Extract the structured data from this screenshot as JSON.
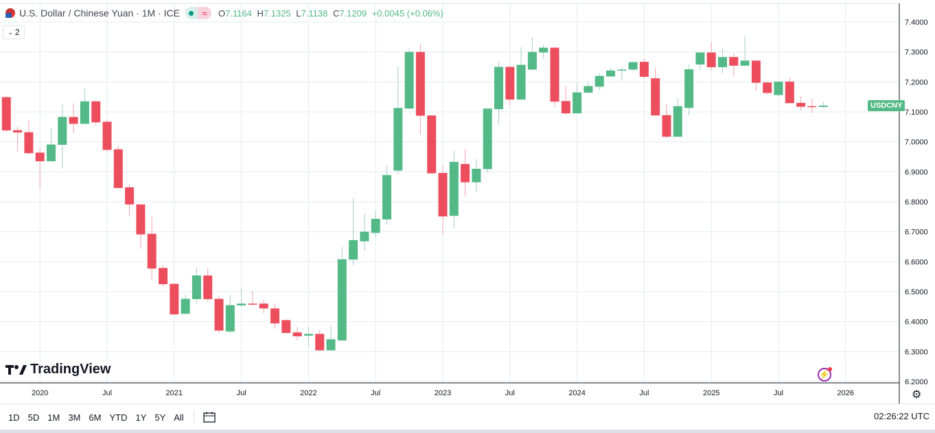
{
  "legend": {
    "title": "U.S. Dollar / Chinese Yuan · 1M · ICE",
    "open_label": "O",
    "open": "7.1164",
    "high_label": "H",
    "high": "7.1325",
    "low_label": "L",
    "low": "7.1138",
    "close_label": "C",
    "close": "7.1209",
    "change": "+0.0045 (+0.06%)",
    "collapse_count": "2",
    "wave_icon": "≈"
  },
  "symbol_tag": "USDCNY",
  "logo_text": "TradingView",
  "colors": {
    "up": "#53b987",
    "down": "#ec4e5e",
    "up_wick": "#a3cdc9",
    "down_wick": "#f4a0aa",
    "grid": "#e1ecf2"
  },
  "chart_data": {
    "type": "candlestick",
    "interval": "1M",
    "ylim": [
      6.2,
      7.4
    ],
    "y_ticks": [
      "7.4000",
      "7.3000",
      "7.2000",
      "7.1000",
      "7.0000",
      "6.9000",
      "6.8000",
      "6.7000",
      "6.6000",
      "6.5000",
      "6.4000",
      "6.3000",
      "6.2000"
    ],
    "x_ticks": [
      {
        "label": "2020",
        "date": "2020-01"
      },
      {
        "label": "Jul",
        "date": "2020-07"
      },
      {
        "label": "2021",
        "date": "2021-01"
      },
      {
        "label": "Jul",
        "date": "2021-07"
      },
      {
        "label": "2022",
        "date": "2022-01"
      },
      {
        "label": "Jul",
        "date": "2022-07"
      },
      {
        "label": "2023",
        "date": "2023-01"
      },
      {
        "label": "Jul",
        "date": "2023-07"
      },
      {
        "label": "2024",
        "date": "2024-01"
      },
      {
        "label": "Jul",
        "date": "2024-07"
      },
      {
        "label": "2025",
        "date": "2025-01"
      },
      {
        "label": "Jul",
        "date": "2025-07"
      },
      {
        "label": "2026",
        "date": "2026-01"
      }
    ],
    "grid": true,
    "candles": [
      [
        "2019-10",
        7.149,
        7.153,
        7.033,
        7.038
      ],
      [
        "2019-11",
        7.039,
        7.051,
        6.969,
        7.031
      ],
      [
        "2019-12",
        7.032,
        7.073,
        6.958,
        6.962
      ],
      [
        "2020-01",
        6.964,
        6.98,
        6.843,
        6.935
      ],
      [
        "2020-02",
        6.935,
        7.044,
        6.935,
        6.991
      ],
      [
        "2020-03",
        6.99,
        7.124,
        6.912,
        7.083
      ],
      [
        "2020-04",
        7.083,
        7.128,
        7.029,
        7.06
      ],
      [
        "2020-05",
        7.06,
        7.178,
        7.06,
        7.135
      ],
      [
        "2020-06",
        7.135,
        7.14,
        7.054,
        7.065
      ],
      [
        "2020-07",
        7.067,
        7.073,
        6.967,
        6.973
      ],
      [
        "2020-08",
        6.975,
        6.987,
        6.844,
        6.846
      ],
      [
        "2020-09",
        6.848,
        6.857,
        6.753,
        6.791
      ],
      [
        "2020-10",
        6.791,
        6.793,
        6.643,
        6.691
      ],
      [
        "2020-11",
        6.693,
        6.75,
        6.541,
        6.577
      ],
      [
        "2020-12",
        6.579,
        6.588,
        6.518,
        6.525
      ],
      [
        "2021-01",
        6.526,
        6.528,
        6.424,
        6.424
      ],
      [
        "2021-02",
        6.426,
        6.49,
        6.426,
        6.476
      ],
      [
        "2021-03",
        6.475,
        6.581,
        6.459,
        6.554
      ],
      [
        "2021-04",
        6.554,
        6.579,
        6.465,
        6.475
      ],
      [
        "2021-05",
        6.476,
        6.485,
        6.361,
        6.37
      ],
      [
        "2021-06",
        6.367,
        6.489,
        6.36,
        6.455
      ],
      [
        "2021-07",
        6.454,
        6.51,
        6.449,
        6.46
      ],
      [
        "2021-08",
        6.46,
        6.503,
        6.453,
        6.457
      ],
      [
        "2021-09",
        6.46,
        6.473,
        6.428,
        6.444
      ],
      [
        "2021-10",
        6.444,
        6.46,
        6.376,
        6.394
      ],
      [
        "2021-11",
        6.405,
        6.407,
        6.361,
        6.362
      ],
      [
        "2021-12",
        6.364,
        6.382,
        6.337,
        6.351
      ],
      [
        "2022-01",
        6.353,
        6.382,
        6.316,
        6.359
      ],
      [
        "2022-02",
        6.359,
        6.37,
        6.303,
        6.304
      ],
      [
        "2022-03",
        6.304,
        6.386,
        6.304,
        6.341
      ],
      [
        "2022-04",
        6.337,
        6.649,
        6.337,
        6.608
      ],
      [
        "2022-05",
        6.607,
        6.812,
        6.588,
        6.672
      ],
      [
        "2022-06",
        6.668,
        6.76,
        6.636,
        6.7
      ],
      [
        "2022-07",
        6.696,
        6.77,
        6.684,
        6.743
      ],
      [
        "2022-08",
        6.741,
        6.921,
        6.723,
        6.889
      ],
      [
        "2022-09",
        6.904,
        7.251,
        6.892,
        7.113
      ],
      [
        "2022-10",
        7.111,
        7.31,
        7.109,
        7.3
      ],
      [
        "2022-11",
        7.3,
        7.326,
        7.025,
        7.087
      ],
      [
        "2022-12",
        7.088,
        7.088,
        6.892,
        6.895
      ],
      [
        "2023-01",
        6.896,
        6.921,
        6.692,
        6.751
      ],
      [
        "2023-02",
        6.753,
        6.971,
        6.71,
        6.933
      ],
      [
        "2023-03",
        6.926,
        6.976,
        6.817,
        6.865
      ],
      [
        "2023-04",
        6.865,
        6.942,
        6.833,
        6.91
      ],
      [
        "2023-05",
        6.909,
        7.111,
        6.897,
        7.111
      ],
      [
        "2023-06",
        7.109,
        7.268,
        7.057,
        7.25
      ],
      [
        "2023-07",
        7.25,
        7.254,
        7.121,
        7.141
      ],
      [
        "2023-08",
        7.141,
        7.316,
        7.141,
        7.257
      ],
      [
        "2023-09",
        7.241,
        7.348,
        7.241,
        7.3
      ],
      [
        "2023-10",
        7.298,
        7.323,
        7.276,
        7.314
      ],
      [
        "2023-11",
        7.314,
        7.318,
        7.118,
        7.134
      ],
      [
        "2023-12",
        7.136,
        7.186,
        7.089,
        7.095
      ],
      [
        "2024-01",
        7.095,
        7.197,
        7.095,
        7.165
      ],
      [
        "2024-02",
        7.164,
        7.2,
        7.164,
        7.186
      ],
      [
        "2024-03",
        7.184,
        7.229,
        7.171,
        7.22
      ],
      [
        "2024-04",
        7.218,
        7.247,
        7.218,
        7.238
      ],
      [
        "2024-05",
        7.239,
        7.25,
        7.204,
        7.241
      ],
      [
        "2024-06",
        7.241,
        7.268,
        7.237,
        7.266
      ],
      [
        "2024-07",
        7.267,
        7.278,
        7.211,
        7.217
      ],
      [
        "2024-08",
        7.212,
        7.248,
        7.088,
        7.088
      ],
      [
        "2024-09",
        7.089,
        7.126,
        7.013,
        7.017
      ],
      [
        "2024-10",
        7.017,
        7.144,
        7.017,
        7.119
      ],
      [
        "2024-11",
        7.113,
        7.258,
        7.088,
        7.242
      ],
      [
        "2024-12",
        7.258,
        7.298,
        7.239,
        7.298
      ],
      [
        "2025-01",
        7.298,
        7.333,
        7.238,
        7.249
      ],
      [
        "2025-02",
        7.249,
        7.31,
        7.229,
        7.283
      ],
      [
        "2025-03",
        7.283,
        7.294,
        7.217,
        7.254
      ],
      [
        "2025-04",
        7.254,
        7.351,
        7.254,
        7.271
      ],
      [
        "2025-05",
        7.271,
        7.271,
        7.17,
        7.197
      ],
      [
        "2025-06",
        7.198,
        7.201,
        7.158,
        7.163
      ],
      [
        "2025-07",
        7.156,
        7.201,
        7.152,
        7.201
      ],
      [
        "2025-08",
        7.201,
        7.215,
        7.129,
        7.129
      ],
      [
        "2025-09",
        7.13,
        7.152,
        7.104,
        7.117
      ],
      [
        "2025-10",
        7.119,
        7.144,
        7.097,
        7.118
      ],
      [
        "2025-11",
        7.1164,
        7.1325,
        7.1138,
        7.1209
      ]
    ]
  },
  "bottom_bar": {
    "ranges": [
      "1D",
      "5D",
      "1M",
      "3M",
      "6M",
      "YTD",
      "1Y",
      "5Y",
      "All"
    ],
    "clock": "02:26:22 UTC"
  }
}
